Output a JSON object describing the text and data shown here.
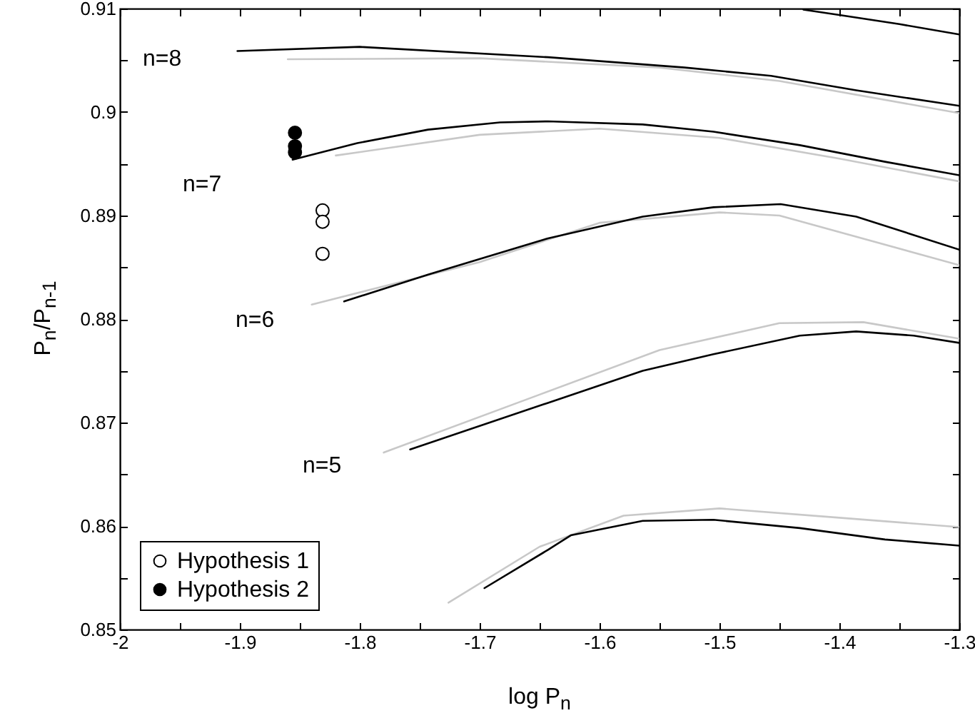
{
  "chart_data": {
    "type": "line",
    "xlabel": "log P$_{n}$",
    "ylabel": "P$_{n}$/P$_{n-1}$",
    "xlim": [
      -2.0,
      -1.3
    ],
    "ylim": [
      0.85,
      0.91
    ],
    "xticks": [
      -2.0,
      {
        "value": -1.95,
        "label": null
      },
      -1.9,
      {
        "value": -1.85,
        "label": null
      },
      -1.8,
      {
        "value": -1.75,
        "label": null
      },
      -1.7,
      {
        "value": -1.65,
        "label": null
      },
      -1.6,
      {
        "value": -1.55,
        "label": null
      },
      -1.5,
      {
        "value": -1.45,
        "label": null
      },
      -1.4,
      {
        "value": -1.35,
        "label": null
      },
      -1.3
    ],
    "yticks": [
      0.85,
      {
        "value": 0.855,
        "label": null
      },
      0.86,
      {
        "value": 0.865,
        "label": null
      },
      0.87,
      {
        "value": 0.875,
        "label": null
      },
      0.88,
      {
        "value": 0.885,
        "label": null
      },
      0.89,
      {
        "value": 0.895,
        "label": null
      },
      0.9,
      {
        "value": 0.905,
        "label": null
      },
      0.91
    ],
    "grid": false,
    "legend": "bottom left",
    "series": [
      {
        "color": "#c8c8c8",
        "x": [
          -1.86,
          -1.7,
          -1.55,
          -1.45,
          -1.3
        ],
        "values": [
          0.9051,
          0.9052,
          0.9043,
          0.903,
          0.8999
        ]
      },
      {
        "type": "line",
        "color": "#c8c8c8",
        "x": [
          -1.82,
          -1.7,
          -1.6,
          -1.5,
          -1.4,
          -1.3
        ],
        "values": [
          0.8958,
          0.8978,
          0.8984,
          0.8975,
          0.8955,
          0.8933
        ]
      },
      {
        "type": "line",
        "color": "#c8c8c8",
        "x": [
          -1.84,
          -1.7,
          -1.6,
          -1.5,
          -1.45,
          -1.3
        ],
        "values": [
          0.8814,
          0.8855,
          0.8893,
          0.8903,
          0.89,
          0.8852
        ]
      },
      {
        "type": "line",
        "color": "#c8c8c8",
        "x": [
          -1.78,
          -1.65,
          -1.55,
          -1.45,
          -1.38,
          -1.3
        ],
        "values": [
          0.8671,
          0.8727,
          0.877,
          0.8796,
          0.8797,
          0.8781
        ]
      },
      {
        "type": "line",
        "color": "#c8c8c8",
        "x": [
          -1.726,
          -1.65,
          -1.58,
          -1.5,
          -1.4,
          -1.3
        ],
        "values": [
          0.8526,
          0.858,
          0.861,
          0.8617,
          0.8608,
          0.8599
        ]
      },
      {
        "type": "line",
        "color": "#000000",
        "x": [
          -1.43,
          -1.401,
          -1.35,
          -1.3
        ],
        "values": [
          0.9099,
          0.9094,
          0.9085,
          0.9075
        ]
      },
      {
        "type": "line",
        "color": "#000000",
        "x": [
          -1.902,
          -1.8,
          -1.643,
          -1.529,
          -1.457,
          -1.386,
          -1.3
        ],
        "values": [
          0.9059,
          0.9063,
          0.9053,
          0.9043,
          0.9035,
          0.9021,
          0.9006
        ]
      },
      {
        "type": "line",
        "color": "#000000",
        "x": [
          -1.856,
          -1.802,
          -1.743,
          -1.683,
          -1.643,
          -1.564,
          -1.505,
          -1.433,
          -1.362,
          -1.3
        ],
        "values": [
          0.8954,
          0.897,
          0.8983,
          0.899,
          0.8991,
          0.8988,
          0.8981,
          0.8968,
          0.8952,
          0.8939
        ]
      },
      {
        "type": "line",
        "color": "#000000",
        "x": [
          -1.813,
          -1.743,
          -1.643,
          -1.564,
          -1.505,
          -1.449,
          -1.386,
          -1.3
        ],
        "values": [
          0.8817,
          0.8843,
          0.8878,
          0.8899,
          0.8908,
          0.8911,
          0.8899,
          0.8867
        ]
      },
      {
        "type": "line",
        "color": "#000000",
        "x": [
          -1.758,
          -1.643,
          -1.564,
          -1.505,
          -1.433,
          -1.386,
          -1.338,
          -1.3
        ],
        "values": [
          0.8674,
          0.8719,
          0.875,
          0.8766,
          0.8784,
          0.8788,
          0.8784,
          0.8777
        ]
      },
      {
        "type": "line",
        "color": "#000000",
        "x": [
          -1.696,
          -1.643,
          -1.624,
          -1.564,
          -1.505,
          -1.433,
          -1.362,
          -1.3
        ],
        "values": [
          0.854,
          0.8577,
          0.8591,
          0.8605,
          0.8606,
          0.8598,
          0.8587,
          0.8581
        ]
      },
      {
        "type": "scatter",
        "name": "Hypothesis 1",
        "color": "#ffffff",
        "marker": "circle",
        "x": [
          -1.831,
          -1.831,
          -1.831
        ],
        "values": [
          0.8905,
          0.8894,
          0.8863
        ]
      },
      {
        "type": "scatter",
        "name": "Hypothesis 2",
        "color": "#000000",
        "marker": "circle",
        "x": [
          -1.854,
          -1.854,
          -1.854
        ],
        "values": [
          0.898,
          0.8967,
          0.8961
        ]
      }
    ],
    "annotations": [
      "n=8",
      "n=7",
      "n=6",
      "n=5"
    ]
  }
}
